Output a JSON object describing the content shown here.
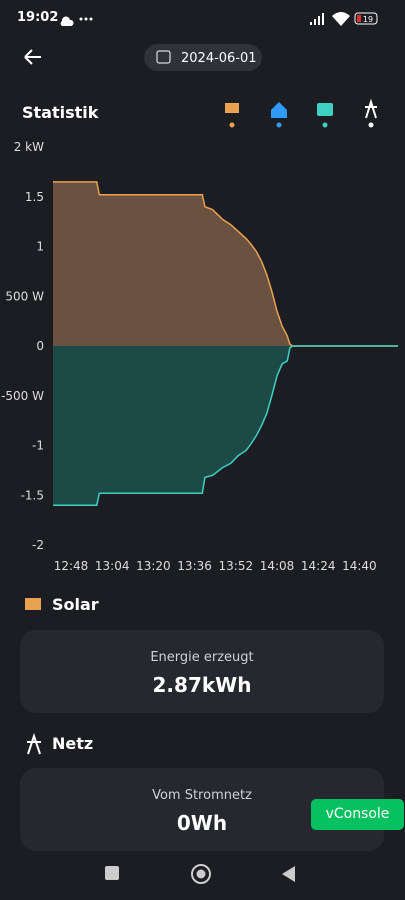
{
  "status_bar": {
    "time": "19:02",
    "battery": "19"
  },
  "header": {
    "date": "2024-06-01"
  },
  "section_title": "Statistik",
  "chart_data": {
    "type": "area",
    "x": [
      "12:41",
      "12:58",
      "12:59",
      "13:39",
      "13:40",
      "13:43",
      "13:47",
      "13:50",
      "13:53",
      "13:56",
      "13:58",
      "14:00",
      "14:02",
      "14:04",
      "14:06",
      "14:08",
      "14:10",
      "14:12",
      "14:13",
      "14:14",
      "14:55"
    ],
    "series": [
      {
        "color": "#e9a250",
        "fill": "#6a5140",
        "values": [
          1.65,
          1.65,
          1.52,
          1.52,
          1.4,
          1.37,
          1.27,
          1.22,
          1.15,
          1.08,
          1.02,
          0.95,
          0.85,
          0.72,
          0.55,
          0.35,
          0.2,
          0.1,
          0.02,
          0,
          0
        ]
      },
      {
        "color": "#3fd0c4",
        "fill": "#1b4a47",
        "values": [
          -1.6,
          -1.6,
          -1.48,
          -1.48,
          -1.32,
          -1.3,
          -1.22,
          -1.18,
          -1.1,
          -1.05,
          -0.98,
          -0.9,
          -0.8,
          -0.68,
          -0.5,
          -0.3,
          -0.18,
          -0.15,
          -0.02,
          0,
          0
        ]
      }
    ],
    "xlim": [
      "12:41",
      "14:55"
    ],
    "xticks": [
      "12:48",
      "13:04",
      "13:20",
      "13:36",
      "13:52",
      "14:08",
      "14:24",
      "14:40"
    ],
    "ylim": [
      -2,
      2
    ],
    "yticks": [
      {
        "value": 2,
        "label": "2 kW"
      },
      1.5,
      1,
      {
        "value": 0.5,
        "label": "500 W"
      },
      0,
      {
        "value": -0.5,
        "label": "-500 W"
      },
      -1,
      -1.5,
      -2
    ]
  },
  "sections": [
    {
      "title": "Solar",
      "label": "Energie erzeugt",
      "value": "2.87kWh"
    },
    {
      "title": "Netz",
      "label": "Vom Stromnetz",
      "value": "0Wh"
    }
  ],
  "vconsole": "vConsole"
}
